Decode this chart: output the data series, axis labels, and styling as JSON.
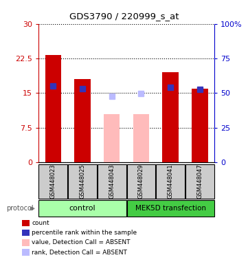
{
  "title": "GDS3790 / 220999_s_at",
  "samples": [
    "GSM448023",
    "GSM448025",
    "GSM448043",
    "GSM448029",
    "GSM448041",
    "GSM448047"
  ],
  "count_values": [
    23.3,
    18.0,
    null,
    null,
    19.5,
    16.0
  ],
  "rank_values_pct": [
    55.0,
    53.0,
    null,
    null,
    54.0,
    52.5
  ],
  "absent_count_values": [
    null,
    null,
    10.5,
    10.5,
    null,
    null
  ],
  "absent_rank_values_pct": [
    null,
    null,
    47.5,
    49.5,
    null,
    null
  ],
  "bar_colors_present_count": "#cc0000",
  "bar_colors_present_rank": "#3333bb",
  "bar_colors_absent_count": "#ffbbbb",
  "bar_colors_absent_rank": "#bbbbff",
  "ylim_left": [
    0,
    30
  ],
  "ylim_right": [
    0,
    100
  ],
  "yticks_left": [
    0,
    7.5,
    15.0,
    22.5,
    30
  ],
  "yticks_right": [
    0,
    25,
    50,
    75,
    100
  ],
  "ytick_labels_left": [
    "0",
    "7.5",
    "15",
    "22.5",
    "30"
  ],
  "ytick_labels_right": [
    "0",
    "25",
    "50",
    "75",
    "100%"
  ],
  "groups": [
    {
      "label": "control",
      "color": "#aaffaa",
      "start": 0,
      "end": 2
    },
    {
      "label": "MEK5D transfection",
      "color": "#44cc44",
      "start": 3,
      "end": 5
    }
  ],
  "protocol_label": "protocol",
  "legend_entries": [
    {
      "color": "#cc0000",
      "label": "count"
    },
    {
      "color": "#3333bb",
      "label": "percentile rank within the sample"
    },
    {
      "color": "#ffbbbb",
      "label": "value, Detection Call = ABSENT"
    },
    {
      "color": "#bbbbff",
      "label": "rank, Detection Call = ABSENT"
    }
  ],
  "bar_width": 0.55,
  "rank_marker_size": 6,
  "background_color": "#ffffff",
  "sample_bg_color": "#cccccc"
}
